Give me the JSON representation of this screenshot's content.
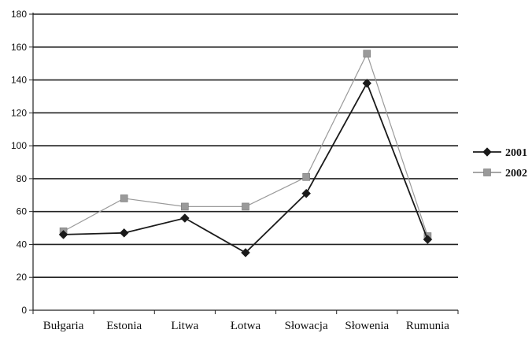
{
  "chart_data": {
    "type": "line",
    "categories": [
      "Bułgaria",
      "Estonia",
      "Litwa",
      "Łotwa",
      "Słowacja",
      "Słowenia",
      "Rumunia"
    ],
    "series": [
      {
        "name": "2001",
        "values": [
          46,
          47,
          56,
          35,
          71,
          138,
          43
        ],
        "color": "#1a1a1a",
        "marker": "diamond"
      },
      {
        "name": "2002",
        "values": [
          48,
          68,
          63,
          63,
          81,
          156,
          45
        ],
        "color": "#9a9a9a",
        "marker": "square"
      }
    ],
    "ylim": [
      0,
      180
    ],
    "yticks": [
      0,
      20,
      40,
      60,
      80,
      100,
      120,
      140,
      160,
      180
    ],
    "grid": true,
    "legend": "right"
  }
}
